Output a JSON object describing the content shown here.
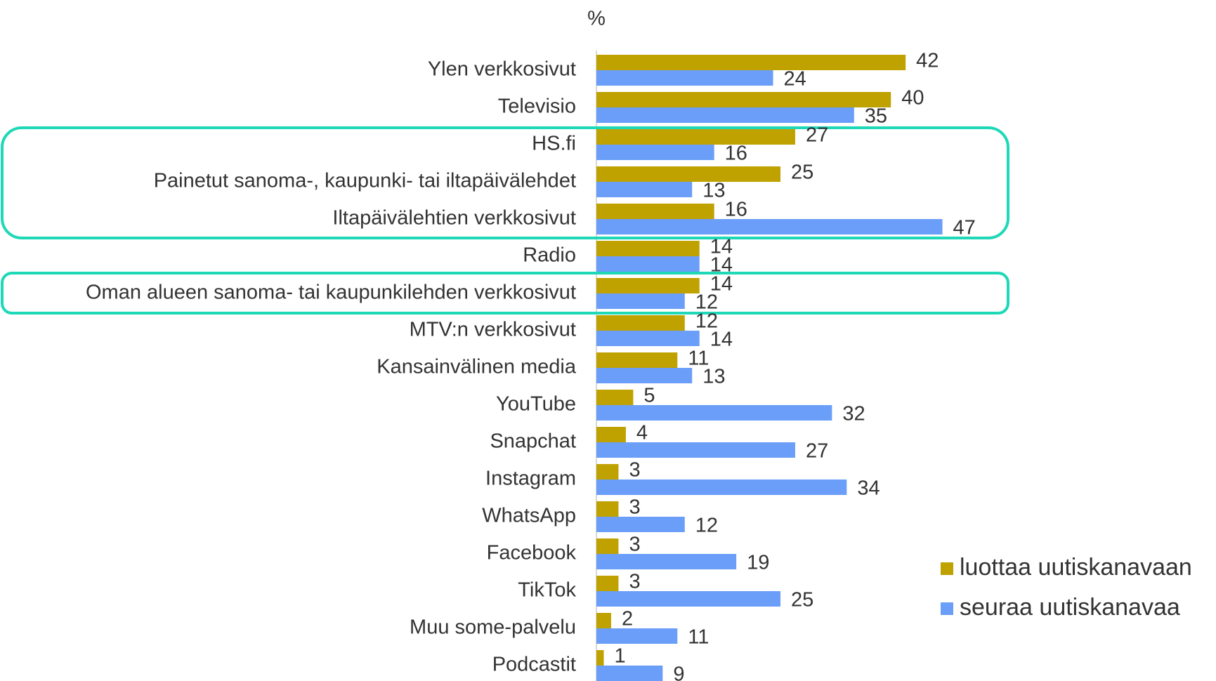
{
  "chart_data": {
    "type": "bar",
    "orientation": "horizontal",
    "axis_label": "%",
    "categories": [
      "Ylen verkkosivut",
      "Televisio",
      "HS.fi",
      "Painetut sanoma-, kaupunki- tai iltapäivälehdet",
      "Iltapäivälehtien verkkosivut",
      "Radio",
      "Oman alueen sanoma- tai kaupunkilehden verkkosivut",
      "MTV:n verkkosivut",
      "Kansainvälinen media",
      "YouTube",
      "Snapchat",
      "Instagram",
      "WhatsApp",
      "Facebook",
      "TikTok",
      "Muu some-palvelu",
      "Podcastit"
    ],
    "series": [
      {
        "name": "luottaa uutiskanavaan",
        "color": "#bfa100",
        "values": [
          42,
          40,
          27,
          25,
          16,
          14,
          14,
          12,
          11,
          5,
          4,
          3,
          3,
          3,
          3,
          2,
          1
        ]
      },
      {
        "name": "seuraa uutiskanavaa",
        "color": "#6a9ef8",
        "values": [
          24,
          35,
          16,
          13,
          47,
          14,
          12,
          14,
          13,
          32,
          27,
          34,
          12,
          19,
          25,
          11,
          9
        ]
      }
    ],
    "xlim": [
      0,
      50
    ],
    "legend": "right"
  }
}
